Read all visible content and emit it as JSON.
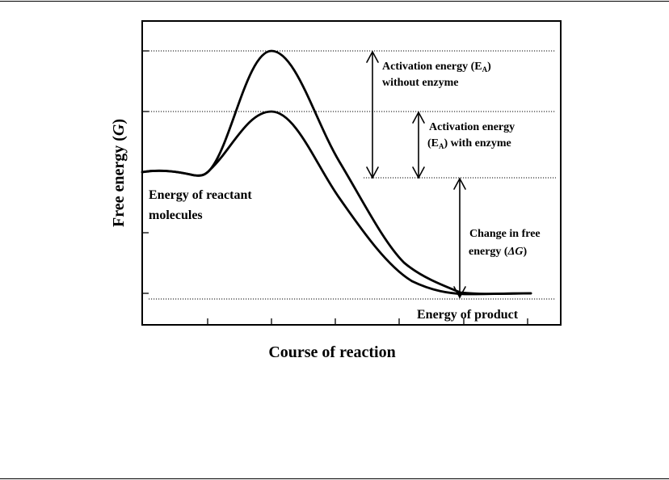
{
  "figure": {
    "ylabel": "Free energy",
    "ylabel_symbol": "G",
    "xlabel": "Course of reaction",
    "annotations": {
      "ea_without_line1_prefix": "Activation energy (E",
      "ea_without_line1_sub": "A",
      "ea_without_line1_suffix": ")",
      "ea_without_line2": "without enzyme",
      "ea_with_line1": "Activation energy",
      "ea_with_line2_prefix": "(E",
      "ea_with_line2_sub": "A",
      "ea_with_line2_suffix": ") with enzyme",
      "delta_g_line1": "Change in free",
      "delta_g_line2_prefix": "energy (",
      "delta_g_line2_symbol": "ΔG",
      "delta_g_line2_suffix": ")",
      "reactant_line1": "Energy of reactant",
      "reactant_line2": "molecules",
      "product": "Energy of product"
    },
    "curves": [
      "reaction without enzyme",
      "reaction with enzyme"
    ],
    "stroke_color": "#000000"
  }
}
